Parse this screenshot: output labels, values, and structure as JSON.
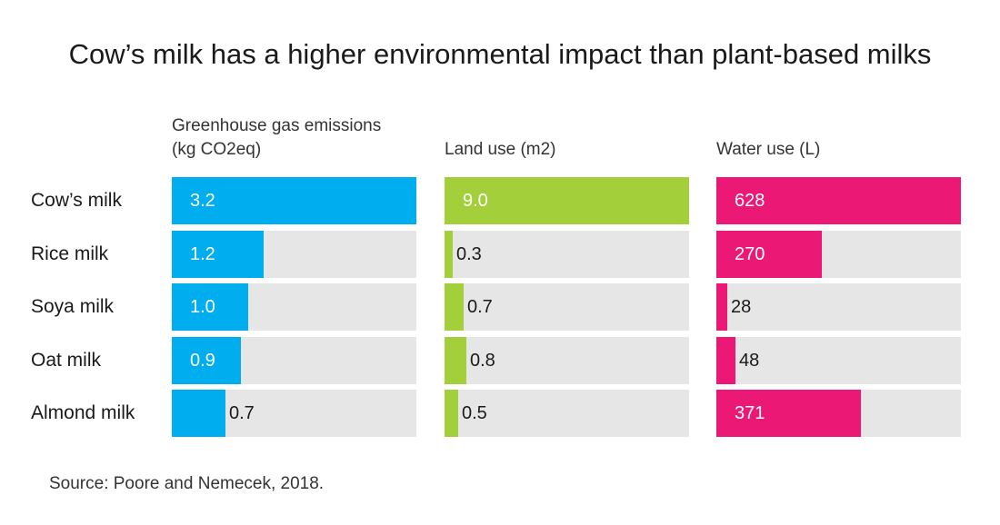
{
  "title": "Cow’s milk has a higher environmental impact than plant-based milks",
  "source": "Source: Poore and Nemecek, 2018.",
  "colors": {
    "ghg": "#00aeef",
    "land": "#a3cf3b",
    "water": "#ec1876",
    "track": "#e6e6e6"
  },
  "chart_data": {
    "type": "bar",
    "orientation": "horizontal",
    "title": "Cow’s milk has a higher environmental impact than plant-based milks",
    "categories": [
      "Cow’s milk",
      "Rice milk",
      "Soya milk",
      "Oat milk",
      "Almond milk"
    ],
    "series": [
      {
        "name": "Greenhouse gas emissions",
        "header_line1": "Greenhouse gas emissions",
        "header_line2": "(kg CO2eq)",
        "color": "#00aeef",
        "values": [
          3.2,
          1.2,
          1.0,
          0.9,
          0.7
        ],
        "labels": [
          "3.2",
          "1.2",
          "1.0",
          "0.9",
          "0.7"
        ],
        "max": 3.2
      },
      {
        "name": "Land use",
        "header_line1": "Land use (m2)",
        "header_line2": "",
        "color": "#a3cf3b",
        "values": [
          9.0,
          0.3,
          0.7,
          0.8,
          0.5
        ],
        "labels": [
          "9.0",
          "0.3",
          "0.7",
          "0.8",
          "0.5"
        ],
        "max": 9.0
      },
      {
        "name": "Water use",
        "header_line1": "Water use (L)",
        "header_line2": "",
        "color": "#ec1876",
        "values": [
          628,
          270,
          28,
          48,
          371
        ],
        "labels": [
          "628",
          "270",
          "28",
          "48",
          "371"
        ],
        "max": 628
      }
    ]
  }
}
